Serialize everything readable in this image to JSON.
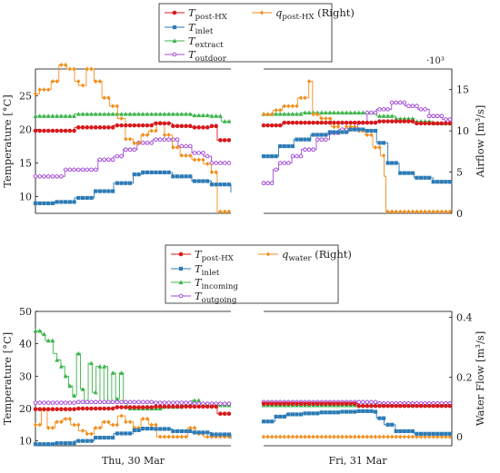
{
  "colors": {
    "red": "#d7191c",
    "blue": "#2c7bb6",
    "green": "#3cb44b",
    "orange": "#f28e1c",
    "purple": "#a24bd6"
  },
  "chart_data": [
    {
      "type": "line",
      "legend": [
        "T_post-HX",
        "q_post-HX (Right)",
        "T_inlet",
        "T_extract",
        "T_outdoor"
      ],
      "ylabel_left": "Temperature [°C]",
      "ylabel_right": "Airflow  [m³/s]",
      "right_axis_multiplier": "·10³",
      "ylim_left": [
        7.5,
        29
      ],
      "ylim_right": [
        0,
        17.5
      ],
      "yticks_left": [
        10,
        15,
        20,
        25
      ],
      "yticks_right": [
        0,
        5,
        10,
        15
      ],
      "x_panels": [
        "Thu, 30 Mar",
        "Fri, 31 Mar"
      ],
      "series": [
        {
          "name": "T_post-HX",
          "color": "red",
          "marker": "circle",
          "axis": "left",
          "thu": [
            [
              0,
              19.8
            ],
            [
              10,
              19.8
            ],
            [
              20,
              20.3
            ],
            [
              40,
              20.6
            ],
            [
              60,
              20.9
            ],
            [
              70,
              20.5
            ],
            [
              80,
              20.3
            ],
            [
              90,
              20.5
            ],
            [
              93,
              18.4
            ],
            [
              100,
              18.4
            ]
          ],
          "fri": [
            [
              0,
              20.6
            ],
            [
              10,
              21.0
            ],
            [
              20,
              21.0
            ],
            [
              60,
              21.2
            ],
            [
              70,
              21.2
            ],
            [
              80,
              20.9
            ],
            [
              100,
              20.8
            ]
          ]
        },
        {
          "name": "q_post-HX",
          "color": "orange",
          "marker": "diamond",
          "axis": "right",
          "thu": [
            [
              0,
              14.5
            ],
            [
              2,
              15.0
            ],
            [
              8,
              16.0
            ],
            [
              12,
              18.0
            ],
            [
              16,
              17.5
            ],
            [
              20,
              16.0
            ],
            [
              22,
              15.5
            ],
            [
              26,
              17.5
            ],
            [
              30,
              16.0
            ],
            [
              34,
              14.0
            ],
            [
              38,
              13.0
            ],
            [
              42,
              11.5
            ],
            [
              46,
              9.0
            ],
            [
              50,
              8.5
            ],
            [
              54,
              9.5
            ],
            [
              58,
              10.0
            ],
            [
              62,
              11.0
            ],
            [
              66,
              9.5
            ],
            [
              70,
              8.0
            ],
            [
              74,
              7.0
            ],
            [
              80,
              6.5
            ],
            [
              86,
              6.0
            ],
            [
              90,
              5.0
            ],
            [
              93,
              0.2
            ],
            [
              100,
              0.2
            ]
          ],
          "fri": [
            [
              0,
              12.0
            ],
            [
              5,
              12.5
            ],
            [
              10,
              13.0
            ],
            [
              18,
              14.0
            ],
            [
              24,
              16.0
            ],
            [
              26,
              12.0
            ],
            [
              30,
              11.5
            ],
            [
              36,
              10.5
            ],
            [
              40,
              11.0
            ],
            [
              44,
              10.5
            ],
            [
              50,
              10.0
            ],
            [
              54,
              9.5
            ],
            [
              58,
              8.0
            ],
            [
              62,
              7.0
            ],
            [
              64,
              4.5
            ],
            [
              65,
              0.2
            ],
            [
              100,
              0.2
            ]
          ]
        },
        {
          "name": "T_inlet",
          "color": "blue",
          "marker": "square",
          "axis": "left",
          "thu": [
            [
              0,
              9.0
            ],
            [
              10,
              9.2
            ],
            [
              20,
              9.8
            ],
            [
              30,
              10.8
            ],
            [
              40,
              12.0
            ],
            [
              50,
              13.3
            ],
            [
              55,
              13.6
            ],
            [
              60,
              13.6
            ],
            [
              70,
              13.0
            ],
            [
              80,
              12.3
            ],
            [
              90,
              11.8
            ],
            [
              100,
              10.6
            ]
          ],
          "fri": [
            [
              0,
              16.0
            ],
            [
              8,
              17.5
            ],
            [
              16,
              18.5
            ],
            [
              25,
              19.2
            ],
            [
              35,
              19.6
            ],
            [
              45,
              20.0
            ],
            [
              55,
              19.8
            ],
            [
              60,
              18.0
            ],
            [
              66,
              15.0
            ],
            [
              72,
              13.5
            ],
            [
              80,
              12.8
            ],
            [
              90,
              12.2
            ],
            [
              100,
              12.0
            ]
          ]
        },
        {
          "name": "T_extract",
          "color": "green",
          "marker": "triangle",
          "axis": "left",
          "thu": [
            [
              0,
              22.0
            ],
            [
              20,
              22.3
            ],
            [
              40,
              22.3
            ],
            [
              60,
              22.3
            ],
            [
              80,
              22.1
            ],
            [
              90,
              22.0
            ],
            [
              95,
              21.2
            ],
            [
              100,
              21.2
            ]
          ],
          "fri": [
            [
              0,
              22.3
            ],
            [
              20,
              22.5
            ],
            [
              40,
              22.5
            ],
            [
              60,
              22.0
            ],
            [
              70,
              21.6
            ],
            [
              80,
              21.2
            ],
            [
              90,
              20.9
            ],
            [
              100,
              20.7
            ]
          ]
        },
        {
          "name": "T_outdoor",
          "color": "purple",
          "marker": "pentagon",
          "axis": "left",
          "thu": [
            [
              0,
              13.0
            ],
            [
              10,
              13.0
            ],
            [
              15,
              14.0
            ],
            [
              25,
              14.0
            ],
            [
              32,
              15.5
            ],
            [
              40,
              16.0
            ],
            [
              45,
              17.0
            ],
            [
              52,
              18.0
            ],
            [
              60,
              18.5
            ],
            [
              68,
              18.5
            ],
            [
              73,
              17.5
            ],
            [
              80,
              16.5
            ],
            [
              86,
              16.0
            ],
            [
              90,
              15.0
            ],
            [
              100,
              15.0
            ]
          ],
          "fri": [
            [
              0,
              12.0
            ],
            [
              5,
              14.0
            ],
            [
              8,
              15.0
            ],
            [
              15,
              16.0
            ],
            [
              20,
              17.0
            ],
            [
              28,
              18.5
            ],
            [
              35,
              19.5
            ],
            [
              40,
              20.0
            ],
            [
              50,
              21.0
            ],
            [
              55,
              22.5
            ],
            [
              60,
              23.0
            ],
            [
              68,
              24.0
            ],
            [
              75,
              23.5
            ],
            [
              82,
              23.0
            ],
            [
              88,
              22.0
            ],
            [
              95,
              21.5
            ],
            [
              100,
              21.0
            ]
          ]
        }
      ]
    },
    {
      "type": "line",
      "legend": [
        "T_post-HX",
        "q_water (Right)",
        "T_inlet",
        "T_incoming",
        "T_outgoing"
      ],
      "ylabel_left": "Temperature [°C]",
      "ylabel_right": "Water Flow  [m³/s]",
      "ylim_left": [
        8.5,
        50
      ],
      "ylim_right": [
        -0.03,
        0.42
      ],
      "yticks_left": [
        10,
        20,
        30,
        40,
        50
      ],
      "yticks_right": [
        0,
        0.2,
        0.4
      ],
      "xtick_labels": [
        "Thu, 30 Mar",
        "Fri, 31 Mar"
      ],
      "series": [
        {
          "name": "T_post-HX",
          "color": "red",
          "marker": "circle",
          "axis": "left",
          "thu": [
            [
              0,
              19.8
            ],
            [
              20,
              20.0
            ],
            [
              40,
              20.4
            ],
            [
              60,
              20.6
            ],
            [
              80,
              20.6
            ],
            [
              90,
              20.6
            ],
            [
              93,
              18.4
            ],
            [
              100,
              18.4
            ]
          ],
          "fri": [
            [
              0,
              21.5
            ],
            [
              20,
              21.5
            ],
            [
              50,
              20.8
            ],
            [
              100,
              20.7
            ]
          ]
        },
        {
          "name": "q_water",
          "color": "orange",
          "marker": "diamond",
          "axis": "right",
          "thu": [
            [
              0,
              0.04
            ],
            [
              3,
              0.09
            ],
            [
              6,
              0.03
            ],
            [
              10,
              0.05
            ],
            [
              14,
              0.06
            ],
            [
              18,
              0.04
            ],
            [
              22,
              0.02
            ],
            [
              26,
              0.01
            ],
            [
              30,
              0.03
            ],
            [
              34,
              0.05
            ],
            [
              38,
              0.04
            ],
            [
              42,
              0.07
            ],
            [
              46,
              0.05
            ],
            [
              50,
              0.03
            ],
            [
              54,
              0.06
            ],
            [
              58,
              0.04
            ],
            [
              62,
              0.0
            ],
            [
              70,
              0.0
            ],
            [
              76,
              0.0
            ],
            [
              78,
              0.03
            ],
            [
              82,
              0.01
            ],
            [
              86,
              0.0
            ],
            [
              100,
              0.0
            ]
          ],
          "fri": [
            [
              0,
              0.0
            ],
            [
              100,
              0.0
            ]
          ]
        },
        {
          "name": "T_inlet",
          "color": "blue",
          "marker": "square",
          "axis": "left",
          "thu": [
            [
              0,
              9.0
            ],
            [
              10,
              9.3
            ],
            [
              20,
              10.0
            ],
            [
              30,
              11.0
            ],
            [
              40,
              12.3
            ],
            [
              50,
              13.3
            ],
            [
              55,
              13.8
            ],
            [
              60,
              13.7
            ],
            [
              70,
              13.0
            ],
            [
              80,
              12.6
            ],
            [
              90,
              12.0
            ],
            [
              100,
              10.6
            ]
          ],
          "fri": [
            [
              0,
              16.0
            ],
            [
              6,
              17.5
            ],
            [
              12,
              18.2
            ],
            [
              20,
              18.5
            ],
            [
              30,
              18.8
            ],
            [
              40,
              19.0
            ],
            [
              50,
              19.2
            ],
            [
              58,
              19.0
            ],
            [
              60,
              17.0
            ],
            [
              64,
              15.0
            ],
            [
              70,
              13.0
            ],
            [
              80,
              12.2
            ],
            [
              100,
              11.5
            ]
          ]
        },
        {
          "name": "T_incoming",
          "color": "green",
          "marker": "triangle",
          "axis": "left",
          "thu": [
            [
              0,
              44
            ],
            [
              3,
              43
            ],
            [
              5,
              41
            ],
            [
              7,
              41
            ],
            [
              9,
              37
            ],
            [
              11,
              35
            ],
            [
              13,
              33
            ],
            [
              15,
              30
            ],
            [
              17,
              27
            ],
            [
              19,
              24
            ],
            [
              21,
              37
            ],
            [
              23,
              26
            ],
            [
              25,
              22
            ],
            [
              27,
              34
            ],
            [
              29,
              25
            ],
            [
              31,
              33
            ],
            [
              33,
              22
            ],
            [
              35,
              33
            ],
            [
              37,
              22
            ],
            [
              39,
              31
            ],
            [
              41,
              23
            ],
            [
              43,
              31
            ],
            [
              45,
              22
            ],
            [
              47,
              20
            ],
            [
              55,
              20
            ],
            [
              65,
              20.5
            ],
            [
              75,
              21
            ],
            [
              80,
              22.5
            ],
            [
              84,
              21.5
            ],
            [
              90,
              21
            ],
            [
              100,
              21
            ]
          ],
          "fri": [
            [
              0,
              21.0
            ],
            [
              100,
              21.0
            ]
          ]
        },
        {
          "name": "T_outgoing",
          "color": "purple",
          "marker": "pentagon",
          "axis": "left",
          "thu": [
            [
              0,
              21.8
            ],
            [
              20,
              22.0
            ],
            [
              40,
              22.0
            ],
            [
              60,
              21.8
            ],
            [
              80,
              21.5
            ],
            [
              100,
              21.3
            ]
          ],
          "fri": [
            [
              0,
              22.0
            ],
            [
              20,
              22.0
            ],
            [
              40,
              22.0
            ],
            [
              60,
              21.6
            ],
            [
              80,
              21.6
            ],
            [
              100,
              21.6
            ]
          ]
        }
      ]
    }
  ]
}
